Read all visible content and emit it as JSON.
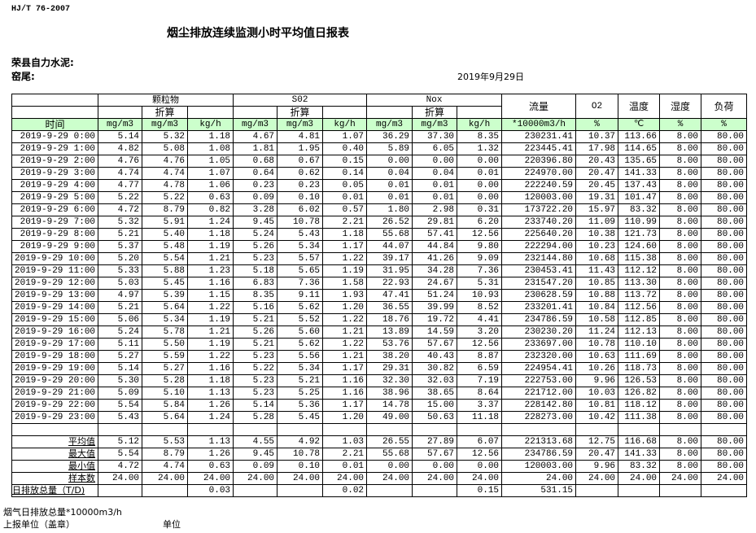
{
  "header": {
    "standard": "HJ/T  76-2007",
    "title": "烟尘排放连续监测小时平均值日报表",
    "company": "荣县自力水泥:",
    "kiln": "窑尾:",
    "date": "2019年9月29日"
  },
  "table": {
    "groups": {
      "particulate": "颗粒物",
      "so2": "S02",
      "nox": "Nox",
      "converted": "折算",
      "flow": "流量",
      "o2": "O2",
      "temp": "温度",
      "humidity": "湿度",
      "load": "负荷"
    },
    "units": [
      "时间",
      "mg/m3",
      "mg/m3",
      "kg/h",
      "mg/m3",
      "mg/m3",
      "kg/h",
      "mg/m3",
      "mg/m3",
      "kg/h",
      "*10000m3/h",
      "%",
      "℃",
      "%",
      "%"
    ],
    "rows": [
      [
        "2019-9-29 0:00",
        "5.14",
        "5.32",
        "1.18",
        "4.67",
        "4.81",
        "1.07",
        "36.29",
        "37.30",
        "8.35",
        "230231.41",
        "10.37",
        "113.66",
        "8.00",
        "80.00"
      ],
      [
        "2019-9-29 1:00",
        "4.82",
        "5.08",
        "1.08",
        "1.81",
        "1.95",
        "0.40",
        "5.89",
        "6.05",
        "1.32",
        "223445.41",
        "17.98",
        "114.65",
        "8.00",
        "80.00"
      ],
      [
        "2019-9-29 2:00",
        "4.76",
        "4.76",
        "1.05",
        "0.68",
        "0.67",
        "0.15",
        "0.00",
        "0.00",
        "0.00",
        "220396.80",
        "20.43",
        "135.65",
        "8.00",
        "80.00"
      ],
      [
        "2019-9-29 3:00",
        "4.74",
        "4.74",
        "1.07",
        "0.64",
        "0.62",
        "0.14",
        "0.04",
        "0.04",
        "0.01",
        "224970.00",
        "20.47",
        "141.33",
        "8.00",
        "80.00"
      ],
      [
        "2019-9-29 4:00",
        "4.77",
        "4.78",
        "1.06",
        "0.23",
        "0.23",
        "0.05",
        "0.01",
        "0.01",
        "0.00",
        "222240.59",
        "20.45",
        "137.43",
        "8.00",
        "80.00"
      ],
      [
        "2019-9-29 5:00",
        "5.22",
        "5.22",
        "0.63",
        "0.09",
        "0.10",
        "0.01",
        "0.01",
        "0.01",
        "0.00",
        "120003.00",
        "19.31",
        "101.47",
        "8.00",
        "80.00"
      ],
      [
        "2019-9-29 6:00",
        "4.72",
        "8.79",
        "0.82",
        "3.28",
        "6.02",
        "0.57",
        "1.80",
        "2.98",
        "0.31",
        "173722.20",
        "15.97",
        "83.32",
        "8.00",
        "80.00"
      ],
      [
        "2019-9-29 7:00",
        "5.32",
        "5.91",
        "1.24",
        "9.45",
        "10.78",
        "2.21",
        "26.52",
        "29.81",
        "6.20",
        "233740.20",
        "11.09",
        "110.99",
        "8.00",
        "80.00"
      ],
      [
        "2019-9-29 8:00",
        "5.21",
        "5.40",
        "1.18",
        "5.24",
        "5.43",
        "1.18",
        "55.68",
        "57.41",
        "12.56",
        "225640.20",
        "10.38",
        "121.73",
        "8.00",
        "80.00"
      ],
      [
        "2019-9-29 9:00",
        "5.37",
        "5.48",
        "1.19",
        "5.26",
        "5.34",
        "1.17",
        "44.07",
        "44.84",
        "9.80",
        "222294.00",
        "10.23",
        "124.60",
        "8.00",
        "80.00"
      ],
      [
        "2019-9-29 10:00",
        "5.20",
        "5.54",
        "1.21",
        "5.23",
        "5.57",
        "1.22",
        "39.17",
        "41.26",
        "9.09",
        "232144.80",
        "10.68",
        "115.38",
        "8.00",
        "80.00"
      ],
      [
        "2019-9-29 11:00",
        "5.33",
        "5.88",
        "1.23",
        "5.18",
        "5.65",
        "1.19",
        "31.95",
        "34.28",
        "7.36",
        "230453.41",
        "11.43",
        "112.12",
        "8.00",
        "80.00"
      ],
      [
        "2019-9-29 12:00",
        "5.03",
        "5.45",
        "1.16",
        "6.83",
        "7.36",
        "1.58",
        "22.93",
        "24.67",
        "5.31",
        "231547.20",
        "10.85",
        "113.30",
        "8.00",
        "80.00"
      ],
      [
        "2019-9-29 13:00",
        "4.97",
        "5.39",
        "1.15",
        "8.35",
        "9.11",
        "1.93",
        "47.41",
        "51.24",
        "10.93",
        "230628.59",
        "10.88",
        "113.72",
        "8.00",
        "80.00"
      ],
      [
        "2019-9-29 14:00",
        "5.21",
        "5.64",
        "1.22",
        "5.16",
        "5.62",
        "1.20",
        "36.55",
        "39.99",
        "8.52",
        "233201.41",
        "10.84",
        "112.56",
        "8.00",
        "80.00"
      ],
      [
        "2019-9-29 15:00",
        "5.06",
        "5.34",
        "1.19",
        "5.21",
        "5.52",
        "1.22",
        "18.76",
        "19.72",
        "4.41",
        "234786.59",
        "10.58",
        "112.85",
        "8.00",
        "80.00"
      ],
      [
        "2019-9-29 16:00",
        "5.24",
        "5.78",
        "1.21",
        "5.26",
        "5.60",
        "1.21",
        "13.89",
        "14.59",
        "3.20",
        "230230.20",
        "11.24",
        "112.13",
        "8.00",
        "80.00"
      ],
      [
        "2019-9-29 17:00",
        "5.11",
        "5.50",
        "1.19",
        "5.21",
        "5.62",
        "1.22",
        "53.76",
        "57.67",
        "12.56",
        "233697.00",
        "10.78",
        "110.10",
        "8.00",
        "80.00"
      ],
      [
        "2019-9-29 18:00",
        "5.27",
        "5.59",
        "1.22",
        "5.23",
        "5.56",
        "1.21",
        "38.20",
        "40.43",
        "8.87",
        "232320.00",
        "10.63",
        "111.69",
        "8.00",
        "80.00"
      ],
      [
        "2019-9-29 19:00",
        "5.14",
        "5.27",
        "1.16",
        "5.22",
        "5.34",
        "1.17",
        "29.31",
        "30.82",
        "6.59",
        "224954.41",
        "10.26",
        "118.73",
        "8.00",
        "80.00"
      ],
      [
        "2019-9-29 20:00",
        "5.30",
        "5.28",
        "1.18",
        "5.23",
        "5.21",
        "1.16",
        "32.30",
        "32.03",
        "7.19",
        "222753.00",
        "9.96",
        "126.53",
        "8.00",
        "80.00"
      ],
      [
        "2019-9-29 21:00",
        "5.09",
        "5.10",
        "1.13",
        "5.23",
        "5.25",
        "1.16",
        "38.96",
        "38.65",
        "8.64",
        "221712.00",
        "10.03",
        "126.82",
        "8.00",
        "80.00"
      ],
      [
        "2019-9-29 22:00",
        "5.54",
        "5.84",
        "1.26",
        "5.14",
        "5.36",
        "1.17",
        "14.78",
        "15.00",
        "3.37",
        "228142.80",
        "10.81",
        "118.12",
        "8.00",
        "80.00"
      ],
      [
        "2019-9-29 23:00",
        "5.43",
        "5.64",
        "1.24",
        "5.28",
        "5.45",
        "1.20",
        "49.00",
        "50.63",
        "11.18",
        "228273.00",
        "10.42",
        "111.38",
        "8.00",
        "80.00"
      ]
    ],
    "summary": [
      [
        "平均值",
        "5.12",
        "5.53",
        "1.13",
        "4.55",
        "4.92",
        "1.03",
        "26.55",
        "27.89",
        "6.07",
        "221313.68",
        "12.75",
        "116.68",
        "8.00",
        "80.00"
      ],
      [
        "最大值",
        "5.54",
        "8.79",
        "1.26",
        "9.45",
        "10.78",
        "2.21",
        "55.68",
        "57.67",
        "12.56",
        "234786.59",
        "20.47",
        "141.33",
        "8.00",
        "80.00"
      ],
      [
        "最小值",
        "4.72",
        "4.74",
        "0.63",
        "0.09",
        "0.10",
        "0.01",
        "0.00",
        "0.00",
        "0.00",
        "120003.00",
        "9.96",
        "83.32",
        "8.00",
        "80.00"
      ],
      [
        "样本数",
        "24.00",
        "24.00",
        "24.00",
        "24.00",
        "24.00",
        "24.00",
        "24.00",
        "24.00",
        "24.00",
        "24.00",
        "24.00",
        "24.00",
        "24.00",
        "24.00"
      ],
      [
        "日排放总量（T/D)",
        "",
        "",
        "0.03",
        "",
        "",
        "0.02",
        "",
        "",
        "0.15",
        "531.15",
        "",
        "",
        "",
        ""
      ]
    ]
  },
  "footer": {
    "flue_gas_total": "烟气日排放总量*10000m3/h",
    "reporting_unit": "上报单位（盖章）",
    "unit": "单位"
  },
  "colors": {
    "unit_row_bg": "#ccffcc"
  }
}
